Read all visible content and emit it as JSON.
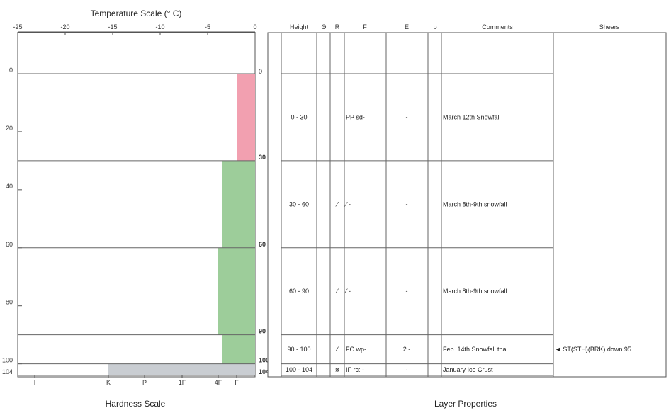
{
  "chart_data": {
    "type": "table",
    "title": "",
    "temperature_axis": {
      "title": "Temperature Scale (° C)",
      "ticks": [
        -25,
        -20,
        -15,
        -10,
        -5,
        0
      ],
      "range": [
        -25,
        0
      ]
    },
    "height_axis": {
      "range": [
        0,
        104
      ],
      "left_ticks": [
        0,
        20,
        40,
        60,
        80,
        100,
        104
      ],
      "boundary_labels": [
        0,
        30,
        60,
        90,
        100,
        104
      ]
    },
    "hardness_axis": {
      "title": "Hardness Scale",
      "labels": [
        "I",
        "K",
        "P",
        "1F",
        "4F",
        "F"
      ]
    },
    "layers": [
      {
        "top": 0,
        "bottom": 30,
        "hardness": "F",
        "hardness_index": 5.0,
        "color": "#f2a0b0"
      },
      {
        "top": 30,
        "bottom": 60,
        "hardness": "4F-1F",
        "hardness_index": 4.2,
        "color": "#9dcd9a"
      },
      {
        "top": 60,
        "bottom": 90,
        "hardness": "4F-1F",
        "hardness_index": 4.0,
        "color": "#9dcd9a"
      },
      {
        "top": 90,
        "bottom": 100,
        "hardness": "4F-1F",
        "hardness_index": 4.2,
        "color": "#9dcd9a"
      },
      {
        "top": 100,
        "bottom": 104,
        "hardness": "K",
        "hardness_index": 1.0,
        "color": "#c9cdd2"
      }
    ],
    "properties_title": "Layer Properties",
    "columns": [
      "Height",
      "Θ",
      "R",
      "F",
      "E",
      "ρ",
      "Comments",
      "Shears"
    ],
    "rows": [
      {
        "height": "0  -  30",
        "theta": "",
        "r": "",
        "f": "PP sd-",
        "e": "-",
        "rho": "",
        "comment": "March 12th Snowfall",
        "shear": ""
      },
      {
        "height": "30  -  60",
        "theta": "",
        "r": "⁄",
        "f": "⁄   -",
        "e": "-",
        "rho": "",
        "comment": "March 8th-9th snowfall",
        "shear": ""
      },
      {
        "height": "60  -  90",
        "theta": "",
        "r": "⁄",
        "f": "⁄   -",
        "e": "-",
        "rho": "",
        "comment": "March 8th-9th snowfall",
        "shear": ""
      },
      {
        "height": "90  -  100",
        "theta": "",
        "r": "⁄",
        "f": "FC wp-",
        "e": "2   -",
        "rho": "",
        "comment": "Feb. 14th Snowfall tha...",
        "shear": "◄ ST(STH)(BRK) down 95"
      },
      {
        "height": "100  -  104",
        "theta": "",
        "r": "⋇",
        "f": "IF rc: -",
        "e": "-",
        "rho": "",
        "comment": "January Ice Crust",
        "shear": ""
      }
    ]
  }
}
